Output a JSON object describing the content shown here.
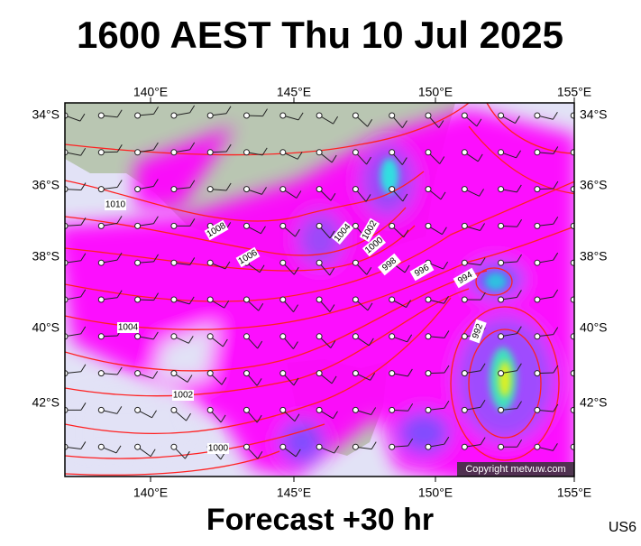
{
  "title": "1600 AEST Thu 10 Jul 2025",
  "footer": "Forecast +30 hr",
  "code": "US6",
  "copyright": "Copyright metvuw.com",
  "lon_labels": [
    "140°E",
    "145°E",
    "150°E",
    "155°E"
  ],
  "lat_labels": [
    "34°S",
    "36°S",
    "38°S",
    "40°S",
    "42°S"
  ],
  "isobar_labels": [
    "1010",
    "1008",
    "1006",
    "1004",
    "1002",
    "1000",
    "998",
    "996",
    "994",
    "992",
    "1004",
    "1002",
    "1000"
  ]
}
